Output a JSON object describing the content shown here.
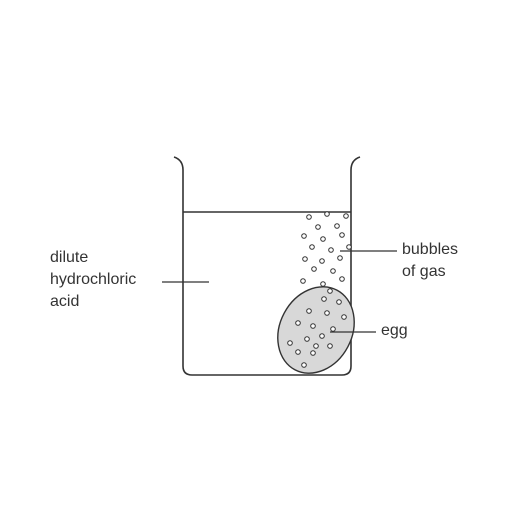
{
  "labels": {
    "acid": [
      "dilute",
      "hydrochloric",
      "acid"
    ],
    "bubbles": [
      "bubbles",
      "of gas"
    ],
    "egg": [
      "egg"
    ]
  },
  "colors": {
    "line": "#333333",
    "egg_fill": "#d8d8d8",
    "background": "#ffffff"
  }
}
